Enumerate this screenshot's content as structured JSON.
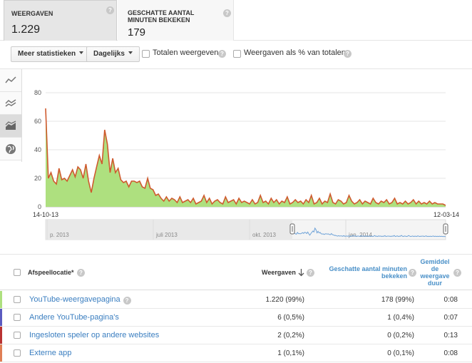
{
  "metrics": {
    "views": {
      "label": "WEERGAVEN",
      "value": "1.229"
    },
    "minutes": {
      "label": "GESCHATTE AANTAL MINUTEN BEKEKEN",
      "value": "179"
    }
  },
  "toolbar": {
    "more_stats_label": "Meer statistieken",
    "interval_label": "Dagelijks",
    "totals_label": "Totalen weergeven",
    "percent_label": "Weergaven als % van totalen"
  },
  "colors": {
    "series": "#cf5a2e",
    "area": "#aee07f",
    "link": "#3a7ec0"
  },
  "rail_icons": [
    "line-chart-icon",
    "multi-line-chart-icon",
    "area-chart-icon",
    "globe-icon"
  ],
  "chart_data": {
    "type": "area",
    "xlabel": "",
    "ylabel": "",
    "x_start": "14-10-13",
    "x_end": "12-03-14",
    "ylim": [
      0,
      80
    ],
    "yticks": [
      "0",
      "20",
      "40",
      "60",
      "80"
    ],
    "grid": true,
    "values": [
      69,
      20,
      24,
      18,
      16,
      27,
      19,
      20,
      18,
      22,
      26,
      21,
      28,
      26,
      20,
      30,
      18,
      10,
      20,
      28,
      36,
      30,
      54,
      44,
      24,
      34,
      24,
      27,
      19,
      17,
      18,
      14,
      18,
      18,
      17,
      18,
      14,
      13,
      20,
      13,
      12,
      8,
      9,
      6,
      4,
      7,
      4,
      6,
      5,
      3,
      7,
      3,
      4,
      5,
      3,
      6,
      2,
      3,
      4,
      8,
      3,
      6,
      2,
      4,
      5,
      3,
      2,
      7,
      3,
      4,
      5,
      2,
      6,
      3,
      4,
      3,
      2,
      5,
      2,
      3,
      8,
      3,
      4,
      2,
      6,
      3,
      5,
      2,
      4,
      3,
      7,
      2,
      3,
      5,
      3,
      4,
      2,
      5,
      3,
      8,
      2,
      3,
      6,
      2,
      4,
      3,
      9,
      3,
      2,
      5,
      4,
      2,
      3,
      8,
      4,
      2,
      3,
      5,
      2,
      4,
      3,
      2,
      6,
      3,
      2,
      4,
      3,
      5,
      2,
      3,
      6,
      2,
      3,
      2,
      4,
      2,
      3,
      5,
      2,
      4,
      2,
      3,
      2,
      4,
      2,
      3,
      2,
      2,
      2,
      1
    ],
    "timeline": {
      "labels": [
        "p. 2013",
        "juli 2013",
        "okt. 2013",
        "jan. 2014"
      ]
    }
  },
  "table": {
    "headers": {
      "location": "Afspeellocatie*",
      "views": "Weergaven",
      "minutes": "Geschatte aantal minuten bekeken",
      "avg_duration": "Gemiddel de weergave duur"
    },
    "rows": [
      {
        "name": "YouTube-weergavepagina",
        "views": "1.220 (99%)",
        "minutes": "178 (99%)",
        "duration": "0:08",
        "color": "#aee07f"
      },
      {
        "name": "Andere YouTube-pagina's",
        "views": "6 (0,5%)",
        "minutes": "1 (0,4%)",
        "duration": "0:07",
        "color": "#5b5bc0"
      },
      {
        "name": "Ingesloten speler op andere websites",
        "views": "2 (0,2%)",
        "minutes": "0 (0,2%)",
        "duration": "0:13",
        "color": "#b93232"
      },
      {
        "name": "Externe app",
        "views": "1 (0,1%)",
        "minutes": "0 (0,1%)",
        "duration": "0:08",
        "color": "#e07f55"
      }
    ]
  }
}
